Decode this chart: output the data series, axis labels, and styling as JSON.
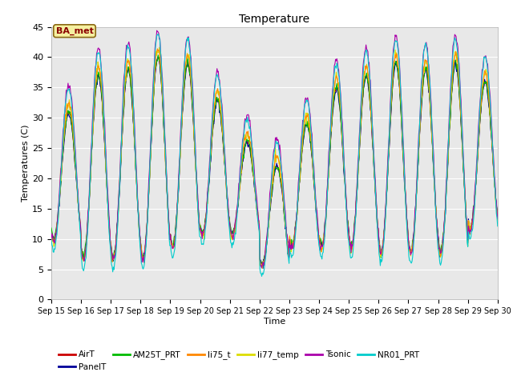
{
  "title": "Temperature",
  "xlabel": "Time",
  "ylabel": "Temperatures (C)",
  "ylim": [
    0,
    45
  ],
  "annotation": "BA_met",
  "xtick_labels": [
    "Sep 15",
    "Sep 16",
    "Sep 17",
    "Sep 18",
    "Sep 19",
    "Sep 20",
    "Sep 21",
    "Sep 22",
    "Sep 23",
    "Sep 24",
    "Sep 25",
    "Sep 26",
    "Sep 27",
    "Sep 28",
    "Sep 29",
    "Sep 30"
  ],
  "ytick_values": [
    0,
    5,
    10,
    15,
    20,
    25,
    30,
    35,
    40,
    45
  ],
  "series_colors": {
    "AirT": "#cc0000",
    "PanelT": "#000099",
    "AM25T_PRT": "#00bb00",
    "li75_t": "#ff8800",
    "li77_temp": "#dddd00",
    "Tsonic": "#aa00aa",
    "NR01_PRT": "#00cccc"
  },
  "fig_bg": "#ffffff",
  "plot_bg": "#e8e8e8",
  "n_points_per_day": 48,
  "n_days": 15,
  "bases": [
    20.5,
    22,
    22.5,
    23.5,
    24,
    22,
    18.5,
    14,
    19,
    22,
    23,
    23.5,
    23,
    23.5,
    24
  ],
  "amps": [
    10.5,
    15,
    15.5,
    16.5,
    15,
    11,
    7.5,
    8,
    10,
    13,
    14,
    15.5,
    15,
    15.5,
    12
  ]
}
